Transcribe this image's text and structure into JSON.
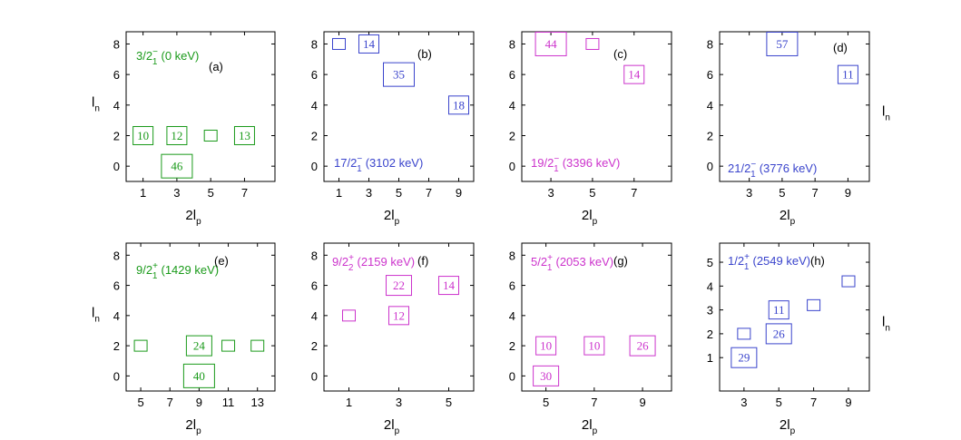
{
  "colors": {
    "green": "#1a9a1a",
    "blue": "#3a44cc",
    "magenta": "#cc33cc"
  },
  "chart_data": [
    {
      "type": "scatter",
      "panel": "(a)",
      "color": "green",
      "state": {
        "spin": "3/2",
        "parity": "−",
        "index": "1",
        "energy": "(0 keV)"
      },
      "xlabel": {
        "base": "2l",
        "sub": "p"
      },
      "ylabel": {
        "base": "l",
        "sub": "n"
      },
      "xlim": [
        0,
        8.8
      ],
      "ylim": [
        -1,
        8.8
      ],
      "xticks": [
        1,
        3,
        5,
        7
      ],
      "yticks": [
        0,
        2,
        4,
        6,
        8
      ],
      "points": [
        {
          "x": 1,
          "y": 2,
          "w": 10,
          "label": "10"
        },
        {
          "x": 3,
          "y": 2,
          "w": 12,
          "label": "12"
        },
        {
          "x": 3,
          "y": 0,
          "w": 46,
          "label": "46"
        },
        {
          "x": 5,
          "y": 2,
          "w": 4,
          "label": ""
        },
        {
          "x": 7,
          "y": 2,
          "w": 13,
          "label": "13"
        }
      ]
    },
    {
      "type": "scatter",
      "panel": "(b)",
      "color": "blue",
      "state": {
        "spin": "17/2",
        "parity": "−",
        "index": "1",
        "energy": "(3102 keV)"
      },
      "xlabel": {
        "base": "2l",
        "sub": "p"
      },
      "ylabel": {
        "base": "",
        "sub": ""
      },
      "xlim": [
        0,
        10
      ],
      "ylim": [
        -1,
        8.8
      ],
      "xticks": [
        1,
        3,
        5,
        7,
        9
      ],
      "yticks": [
        0,
        2,
        4,
        6,
        8
      ],
      "points": [
        {
          "x": 1,
          "y": 8,
          "w": 3,
          "label": ""
        },
        {
          "x": 3,
          "y": 8,
          "w": 14,
          "label": "14"
        },
        {
          "x": 5,
          "y": 6,
          "w": 35,
          "label": "35"
        },
        {
          "x": 9,
          "y": 4,
          "w": 18,
          "label": "18"
        }
      ]
    },
    {
      "type": "scatter",
      "panel": "(c)",
      "color": "magenta",
      "state": {
        "spin": "19/2",
        "parity": "−",
        "index": "1",
        "energy": "(3396 keV)"
      },
      "xlabel": {
        "base": "2l",
        "sub": "p"
      },
      "ylabel": {
        "base": "",
        "sub": ""
      },
      "xlim": [
        1.6,
        8.8
      ],
      "ylim": [
        -1,
        8.8
      ],
      "xticks": [
        3,
        5,
        7
      ],
      "yticks": [
        0,
        2,
        4,
        6,
        8
      ],
      "points": [
        {
          "x": 3,
          "y": 8,
          "w": 44,
          "label": "44"
        },
        {
          "x": 5,
          "y": 8,
          "w": 2,
          "label": ""
        },
        {
          "x": 7,
          "y": 6,
          "w": 14,
          "label": "14"
        }
      ]
    },
    {
      "type": "scatter",
      "panel": "(d)",
      "color": "blue",
      "state": {
        "spin": "21/2",
        "parity": "−",
        "index": "1",
        "energy": "(3776 keV)"
      },
      "xlabel": {
        "base": "2l",
        "sub": "p"
      },
      "ylabel": {
        "base": "l",
        "sub": "n"
      },
      "xlim": [
        1.2,
        10.3
      ],
      "ylim": [
        -1,
        8.8
      ],
      "xticks": [
        3,
        5,
        7,
        9
      ],
      "yticks": [
        0,
        2,
        4,
        6,
        8
      ],
      "points": [
        {
          "x": 5,
          "y": 8,
          "w": 57,
          "label": "57"
        },
        {
          "x": 9,
          "y": 6,
          "w": 11,
          "label": "11"
        }
      ]
    },
    {
      "type": "scatter",
      "panel": "(e)",
      "color": "green",
      "state": {
        "spin": "9/2",
        "parity": "+",
        "index": "1",
        "energy": "(1429 keV)"
      },
      "xlabel": {
        "base": "2l",
        "sub": "p"
      },
      "ylabel": {
        "base": "l",
        "sub": "n"
      },
      "xlim": [
        4,
        14.2
      ],
      "ylim": [
        -1,
        8.8
      ],
      "xticks": [
        5,
        7,
        9,
        11,
        13
      ],
      "yticks": [
        0,
        2,
        4,
        6,
        8
      ],
      "points": [
        {
          "x": 5,
          "y": 2,
          "w": 4,
          "label": ""
        },
        {
          "x": 9,
          "y": 2,
          "w": 24,
          "label": "24"
        },
        {
          "x": 9,
          "y": 0,
          "w": 40,
          "label": "40"
        },
        {
          "x": 11,
          "y": 2,
          "w": 4,
          "label": ""
        },
        {
          "x": 13,
          "y": 2,
          "w": 4,
          "label": ""
        }
      ]
    },
    {
      "type": "scatter",
      "panel": "(f)",
      "color": "magenta",
      "state": {
        "spin": "9/2",
        "parity": "+",
        "index": "2",
        "energy": "(2159 keV)"
      },
      "xlabel": {
        "base": "2l",
        "sub": "p"
      },
      "ylabel": {
        "base": "",
        "sub": ""
      },
      "xlim": [
        0,
        6
      ],
      "ylim": [
        -1,
        8.8
      ],
      "xticks": [
        1,
        3,
        5
      ],
      "yticks": [
        0,
        2,
        4,
        6,
        8
      ],
      "points": [
        {
          "x": 1,
          "y": 4,
          "w": 4,
          "label": ""
        },
        {
          "x": 3,
          "y": 6,
          "w": 22,
          "label": "22"
        },
        {
          "x": 3,
          "y": 4,
          "w": 12,
          "label": "12"
        },
        {
          "x": 5,
          "y": 6,
          "w": 14,
          "label": "14"
        }
      ]
    },
    {
      "type": "scatter",
      "panel": "(g)",
      "color": "magenta",
      "state": {
        "spin": "5/2",
        "parity": "+",
        "index": "1",
        "energy": "(2053 keV)"
      },
      "xlabel": {
        "base": "2l",
        "sub": "p"
      },
      "ylabel": {
        "base": "",
        "sub": ""
      },
      "xlim": [
        4,
        10.2
      ],
      "ylim": [
        -1,
        8.8
      ],
      "xticks": [
        5,
        7,
        9
      ],
      "yticks": [
        0,
        2,
        4,
        6,
        8
      ],
      "points": [
        {
          "x": 5,
          "y": 2,
          "w": 10,
          "label": "10"
        },
        {
          "x": 5,
          "y": 0,
          "w": 30,
          "label": "30"
        },
        {
          "x": 7,
          "y": 2,
          "w": 10,
          "label": "10"
        },
        {
          "x": 9,
          "y": 2,
          "w": 26,
          "label": "26"
        }
      ]
    },
    {
      "type": "scatter",
      "panel": "(h)",
      "color": "blue",
      "state": {
        "spin": "1/2",
        "parity": "+",
        "index": "1",
        "energy": "(2549 keV)"
      },
      "xlabel": {
        "base": "2l",
        "sub": "p"
      },
      "ylabel": {
        "base": "l",
        "sub": "n"
      },
      "xlim": [
        1.6,
        10.2
      ],
      "ylim": [
        -0.4,
        5.8
      ],
      "xticks": [
        3,
        5,
        7,
        9
      ],
      "yticks": [
        1,
        2,
        3,
        4,
        5
      ],
      "points": [
        {
          "x": 3,
          "y": 2,
          "w": 4,
          "label": ""
        },
        {
          "x": 3,
          "y": 1,
          "w": 29,
          "label": "29"
        },
        {
          "x": 5,
          "y": 3,
          "w": 11,
          "label": "11"
        },
        {
          "x": 5,
          "y": 2,
          "w": 26,
          "label": "26"
        },
        {
          "x": 7,
          "y": 3.2,
          "w": 4,
          "label": ""
        },
        {
          "x": 9,
          "y": 4.2,
          "w": 3,
          "label": ""
        }
      ]
    }
  ]
}
